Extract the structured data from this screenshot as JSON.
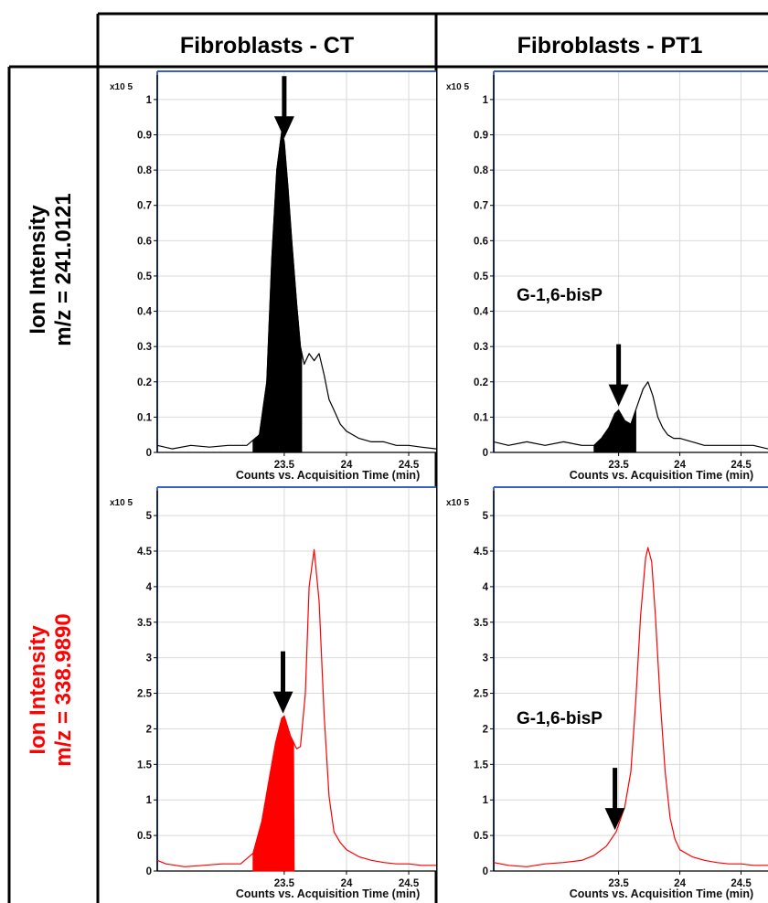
{
  "columns": [
    "Fibroblasts - CT",
    "Fibroblasts - PT1"
  ],
  "rows": [
    {
      "line1": "Ion Intensity",
      "line2": "m/z = 241.0121",
      "color": "#000000"
    },
    {
      "line1": "Ion Intensity",
      "line2": "m/z = 338.9890",
      "color": "#ff0000"
    }
  ],
  "chart_data": [
    {
      "type": "line",
      "panel": "Fibroblasts - CT / m/z = 241.0121",
      "color": "#000000",
      "y_scale_label": "x10 5",
      "xlabel": "Counts vs. Acquisition Time (min)",
      "xlim": [
        22.48,
        24.72
      ],
      "ylim": [
        0,
        1.08
      ],
      "xticks": [
        23.5,
        24,
        24.5
      ],
      "xtick_labels": [
        "23.5",
        "24",
        "24.5"
      ],
      "yticks": [
        0,
        0.1,
        0.2,
        0.3,
        0.4,
        0.5,
        0.6,
        0.7,
        0.8,
        0.9,
        1
      ],
      "ytick_labels": [
        "0",
        "0.1",
        "0.2",
        "0.3",
        "0.4",
        "0.5",
        "0.6",
        "0.7",
        "0.8",
        "0.9",
        "1"
      ],
      "x": [
        22.48,
        22.6,
        22.75,
        22.9,
        23.05,
        23.2,
        23.3,
        23.36,
        23.4,
        23.44,
        23.48,
        23.5,
        23.53,
        23.56,
        23.6,
        23.63,
        23.66,
        23.7,
        23.74,
        23.78,
        23.82,
        23.86,
        23.9,
        23.95,
        24.0,
        24.1,
        24.2,
        24.3,
        24.4,
        24.5,
        24.6,
        24.72
      ],
      "y": [
        0.02,
        0.01,
        0.02,
        0.015,
        0.02,
        0.02,
        0.05,
        0.2,
        0.55,
        0.8,
        0.91,
        0.88,
        0.75,
        0.6,
        0.42,
        0.3,
        0.25,
        0.28,
        0.26,
        0.28,
        0.22,
        0.15,
        0.12,
        0.08,
        0.06,
        0.04,
        0.03,
        0.03,
        0.02,
        0.02,
        0.015,
        0.01
      ],
      "shaded_range": [
        23.25,
        23.64
      ],
      "arrow_x": 23.5
    },
    {
      "type": "line",
      "panel": "Fibroblasts - PT1 / m/z = 241.0121",
      "color": "#000000",
      "y_scale_label": "x10 5",
      "xlabel": "Counts vs. Acquisition Time (min)",
      "xlim": [
        22.48,
        24.72
      ],
      "ylim": [
        0,
        1.08
      ],
      "xticks": [
        23.5,
        24,
        24.5
      ],
      "xtick_labels": [
        "23.5",
        "24",
        "24.5"
      ],
      "yticks": [
        0,
        0.1,
        0.2,
        0.3,
        0.4,
        0.5,
        0.6,
        0.7,
        0.8,
        0.9,
        1
      ],
      "ytick_labels": [
        "0",
        "0.1",
        "0.2",
        "0.3",
        "0.4",
        "0.5",
        "0.6",
        "0.7",
        "0.8",
        "0.9",
        "1"
      ],
      "x": [
        22.48,
        22.6,
        22.75,
        22.9,
        23.05,
        23.2,
        23.3,
        23.36,
        23.42,
        23.47,
        23.5,
        23.55,
        23.6,
        23.66,
        23.7,
        23.74,
        23.78,
        23.82,
        23.86,
        23.9,
        23.95,
        24.0,
        24.1,
        24.2,
        24.3,
        24.4,
        24.5,
        24.6,
        24.72
      ],
      "y": [
        0.03,
        0.02,
        0.03,
        0.02,
        0.03,
        0.02,
        0.02,
        0.04,
        0.07,
        0.11,
        0.12,
        0.09,
        0.08,
        0.14,
        0.18,
        0.2,
        0.16,
        0.1,
        0.07,
        0.05,
        0.04,
        0.04,
        0.03,
        0.02,
        0.02,
        0.02,
        0.02,
        0.02,
        0.01
      ],
      "shaded_range": [
        23.3,
        23.64
      ],
      "arrow_x": 23.5,
      "annotation": "G-1,6-bisP"
    },
    {
      "type": "line",
      "panel": "Fibroblasts - CT / m/z = 338.9890",
      "color": "#ff0000",
      "y_scale_label": "x10 5",
      "xlabel": "Counts vs. Acquisition Time (min)",
      "xlim": [
        22.48,
        24.72
      ],
      "ylim": [
        0,
        5.4
      ],
      "xticks": [
        23.5,
        24,
        24.5
      ],
      "xtick_labels": [
        "23.5",
        "24",
        "24.5"
      ],
      "yticks": [
        0,
        0.5,
        1,
        1.5,
        2,
        2.5,
        3,
        3.5,
        4,
        4.5,
        5
      ],
      "ytick_labels": [
        "0",
        "0.5",
        "1",
        "1.5",
        "2",
        "2.5",
        "3",
        "3.5",
        "4",
        "4.5",
        "5"
      ],
      "x": [
        22.48,
        22.55,
        22.7,
        22.85,
        23.0,
        23.15,
        23.25,
        23.32,
        23.38,
        23.43,
        23.48,
        23.5,
        23.55,
        23.6,
        23.63,
        23.67,
        23.7,
        23.74,
        23.78,
        23.82,
        23.86,
        23.9,
        23.95,
        24.0,
        24.1,
        24.2,
        24.3,
        24.4,
        24.5,
        24.6,
        24.72
      ],
      "y": [
        0.15,
        0.1,
        0.06,
        0.08,
        0.1,
        0.1,
        0.25,
        0.7,
        1.3,
        1.8,
        2.15,
        2.18,
        1.9,
        1.72,
        1.75,
        2.5,
        4.0,
        4.52,
        3.8,
        2.2,
        1.05,
        0.55,
        0.4,
        0.3,
        0.2,
        0.15,
        0.12,
        0.1,
        0.1,
        0.08,
        0.08
      ],
      "shaded_range": [
        23.25,
        23.58
      ],
      "arrow_x": 23.49
    },
    {
      "type": "line",
      "panel": "Fibroblasts - PT1 / m/z = 338.9890",
      "color": "#ff0000",
      "y_scale_label": "x10 5",
      "xlabel": "Counts vs. Acquisition Time (min)",
      "xlim": [
        22.48,
        24.72
      ],
      "ylim": [
        0,
        5.4
      ],
      "xticks": [
        23.5,
        24,
        24.5
      ],
      "xtick_labels": [
        "23.5",
        "24",
        "24.5"
      ],
      "yticks": [
        0,
        0.5,
        1,
        1.5,
        2,
        2.5,
        3,
        3.5,
        4,
        4.5,
        5
      ],
      "ytick_labels": [
        "0",
        "0.5",
        "1",
        "1.5",
        "2",
        "2.5",
        "3",
        "3.5",
        "4",
        "4.5",
        "5"
      ],
      "x": [
        22.48,
        22.6,
        22.75,
        22.9,
        23.05,
        23.2,
        23.3,
        23.4,
        23.48,
        23.55,
        23.6,
        23.64,
        23.68,
        23.72,
        23.74,
        23.77,
        23.8,
        23.84,
        23.88,
        23.92,
        23.96,
        24.0,
        24.1,
        24.2,
        24.3,
        24.4,
        24.5,
        24.6,
        24.72
      ],
      "y": [
        0.12,
        0.08,
        0.06,
        0.1,
        0.12,
        0.15,
        0.22,
        0.35,
        0.55,
        0.9,
        1.4,
        2.4,
        3.6,
        4.4,
        4.55,
        4.35,
        3.6,
        2.4,
        1.4,
        0.75,
        0.45,
        0.3,
        0.2,
        0.15,
        0.12,
        0.1,
        0.1,
        0.08,
        0.08
      ],
      "shaded_range": null,
      "arrow_x": 23.47,
      "annotation": "G-1,6-bisP"
    }
  ]
}
